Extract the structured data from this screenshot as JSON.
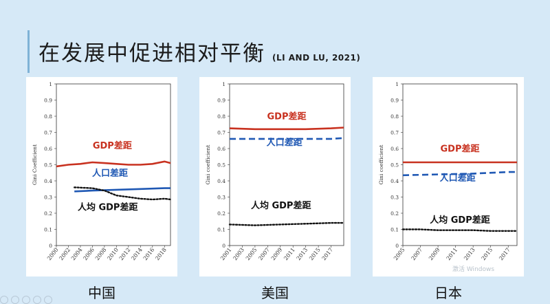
{
  "header": {
    "title": "在发展中促进相对平衡",
    "citation": "(LI AND LU, 2021)"
  },
  "colors": {
    "gdp": "#c8311f",
    "population": "#1f58b4",
    "per_capita": "#111111"
  },
  "footer_watermark": "激活 Windows",
  "chart_data": [
    {
      "type": "line",
      "country": "中国",
      "ylabel": "Gini Coefficient",
      "ylim": [
        0,
        1
      ],
      "yticks": [
        "0",
        "0.1",
        "0.2",
        "0.3",
        "0.4",
        "0.5",
        "0.6",
        "0.7",
        "0.8",
        "0.9",
        "1"
      ],
      "xlim": [
        2000,
        2019
      ],
      "xticks": [
        "2000",
        "2002",
        "2004",
        "2006",
        "2008",
        "2010",
        "2012",
        "2014",
        "2016",
        "2018"
      ],
      "series": [
        {
          "name": "GDP差距",
          "style": "solid",
          "color": "#c8311f",
          "x": [
            2000,
            2002,
            2004,
            2006,
            2008,
            2010,
            2012,
            2014,
            2016,
            2018,
            2019
          ],
          "values": [
            0.49,
            0.5,
            0.505,
            0.515,
            0.51,
            0.505,
            0.5,
            0.5,
            0.505,
            0.52,
            0.51
          ]
        },
        {
          "name": "人口差距",
          "style": "solid",
          "color": "#1f58b4",
          "x": [
            2003,
            2006,
            2010,
            2014,
            2018,
            2019
          ],
          "values": [
            0.335,
            0.34,
            0.345,
            0.35,
            0.355,
            0.355
          ]
        },
        {
          "name": "人均 GDP差距",
          "style": "dotted",
          "color": "#111111",
          "x": [
            2003,
            2006,
            2008,
            2010,
            2012,
            2014,
            2016,
            2018,
            2019
          ],
          "values": [
            0.36,
            0.355,
            0.34,
            0.31,
            0.3,
            0.29,
            0.285,
            0.29,
            0.285
          ]
        }
      ]
    },
    {
      "type": "line",
      "country": "美国",
      "ylabel": "Gini coefficient",
      "ylim": [
        0,
        1
      ],
      "yticks": [
        "0",
        "0.1",
        "0.2",
        "0.3",
        "0.4",
        "0.5",
        "0.6",
        "0.7",
        "0.8",
        "0.9",
        "1"
      ],
      "xlim": [
        2001,
        2019
      ],
      "xticks": [
        "2001",
        "2003",
        "2005",
        "2007",
        "2009",
        "2011",
        "2013",
        "2015",
        "2017"
      ],
      "series": [
        {
          "name": "GDP差距",
          "style": "solid",
          "color": "#c8311f",
          "x": [
            2001,
            2005,
            2009,
            2013,
            2017,
            2019
          ],
          "values": [
            0.725,
            0.72,
            0.72,
            0.72,
            0.725,
            0.73
          ]
        },
        {
          "name": "人口差距",
          "style": "dashed",
          "color": "#1f58b4",
          "x": [
            2001,
            2005,
            2009,
            2013,
            2017,
            2019
          ],
          "values": [
            0.66,
            0.66,
            0.66,
            0.66,
            0.66,
            0.665
          ]
        },
        {
          "name": "人均 GDP差距",
          "style": "dotted",
          "color": "#111111",
          "x": [
            2001,
            2005,
            2009,
            2013,
            2017,
            2019
          ],
          "values": [
            0.13,
            0.125,
            0.13,
            0.135,
            0.14,
            0.14
          ]
        }
      ]
    },
    {
      "type": "line",
      "country": "日本",
      "ylabel": "Gini coefficient",
      "ylim": [
        0,
        1
      ],
      "yticks": [
        "0",
        "0.1",
        "0.2",
        "0.3",
        "0.4",
        "0.5",
        "0.6",
        "0.7",
        "0.8",
        "0.9",
        "1"
      ],
      "xlim": [
        2005,
        2018
      ],
      "xticks": [
        "2005",
        "2007",
        "2009",
        "2011",
        "2013",
        "2015",
        "2017"
      ],
      "series": [
        {
          "name": "GDP差距",
          "style": "solid",
          "color": "#c8311f",
          "x": [
            2005,
            2009,
            2013,
            2017,
            2018
          ],
          "values": [
            0.515,
            0.515,
            0.515,
            0.515,
            0.515
          ]
        },
        {
          "name": "人口差距",
          "style": "dashed",
          "color": "#1f58b4",
          "x": [
            2005,
            2009,
            2013,
            2017,
            2018
          ],
          "values": [
            0.435,
            0.44,
            0.445,
            0.455,
            0.455
          ]
        },
        {
          "name": "人均 GDP差距",
          "style": "dotted",
          "color": "#111111",
          "x": [
            2005,
            2007,
            2009,
            2011,
            2013,
            2015,
            2017,
            2018
          ],
          "values": [
            0.1,
            0.1,
            0.095,
            0.095,
            0.095,
            0.09,
            0.09,
            0.09
          ]
        }
      ]
    }
  ]
}
